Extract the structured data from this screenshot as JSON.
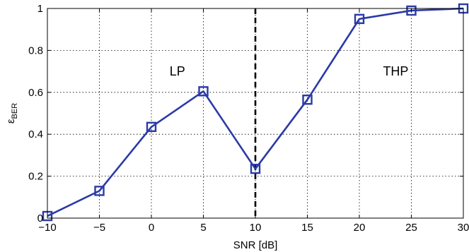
{
  "chart_data": {
    "type": "line",
    "xlabel": "SNR [dB]",
    "ylabel": {
      "base": "ε",
      "subscript": "BER"
    },
    "xlim": [
      -10,
      30
    ],
    "ylim": [
      0,
      1
    ],
    "xticks": [
      -10,
      -5,
      0,
      5,
      10,
      15,
      20,
      25,
      30
    ],
    "yticks": [
      0,
      0.2,
      0.4,
      0.6,
      0.8,
      1
    ],
    "xtick_labels": [
      "−10",
      "−5",
      "0",
      "5",
      "10",
      "15",
      "20",
      "25",
      "30"
    ],
    "ytick_labels": [
      "0",
      "0.2",
      "0.4",
      "0.6",
      "0.8",
      "1"
    ],
    "grid": true,
    "series": [
      {
        "marker": "square",
        "color": "#2b3aa6",
        "x": [
          -10,
          -5,
          0,
          5,
          10,
          15,
          20,
          25,
          30
        ],
        "y": [
          0.01,
          0.13,
          0.435,
          0.605,
          0.235,
          0.565,
          0.95,
          0.99,
          1.0
        ]
      }
    ],
    "vertical_line": {
      "x": 10,
      "style": "dashed",
      "color": "#000000"
    },
    "annotations": [
      {
        "text": "LP",
        "x": 2.5,
        "y": 0.68
      },
      {
        "text": "THP",
        "x": 23.5,
        "y": 0.68
      }
    ]
  }
}
